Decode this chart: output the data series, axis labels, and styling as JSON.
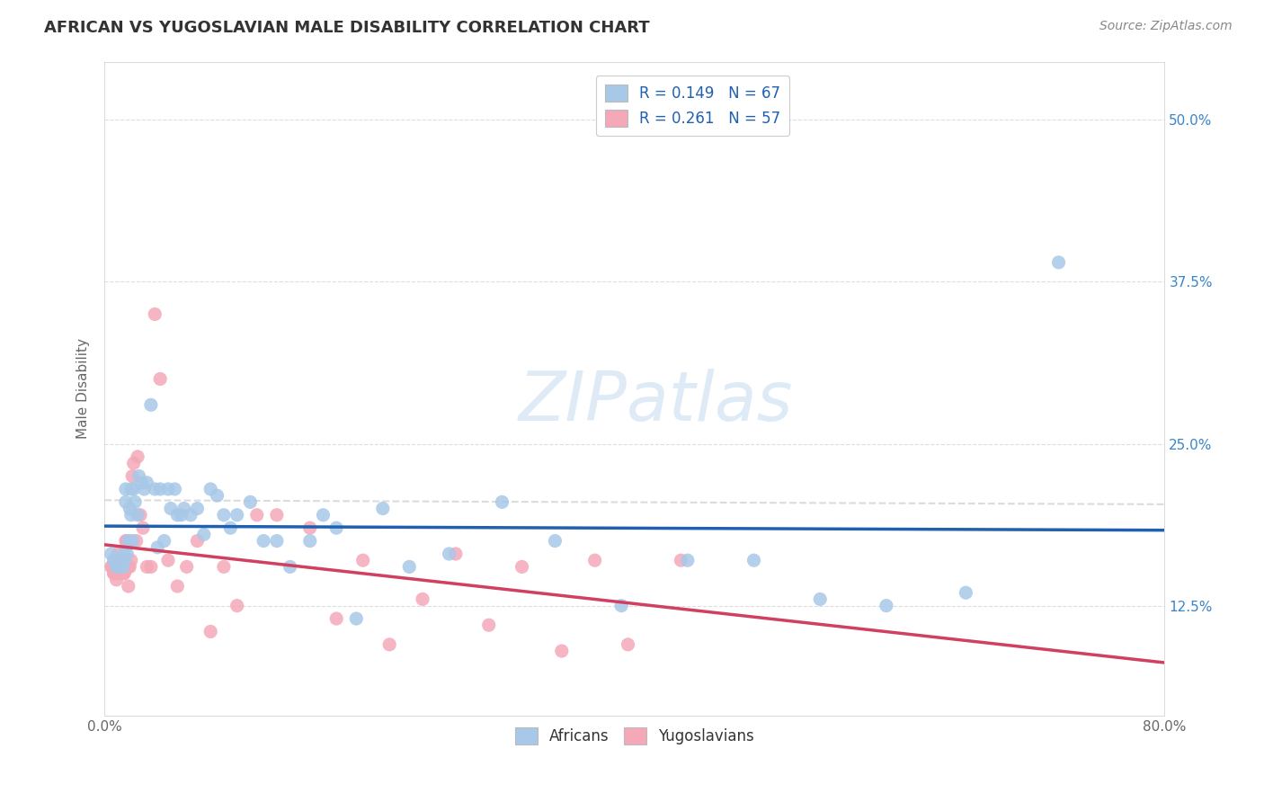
{
  "title": "AFRICAN VS YUGOSLAVIAN MALE DISABILITY CORRELATION CHART",
  "source": "Source: ZipAtlas.com",
  "ylabel": "Male Disability",
  "ytick_labels": [
    "12.5%",
    "25.0%",
    "37.5%",
    "50.0%"
  ],
  "ytick_values": [
    0.125,
    0.25,
    0.375,
    0.5
  ],
  "xlim": [
    0.0,
    0.8
  ],
  "ylim": [
    0.04,
    0.545
  ],
  "watermark": "ZIPatlas",
  "legend_african": "R = 0.149   N = 67",
  "legend_yugoslav": "R = 0.261   N = 57",
  "african_color": "#a8c8e8",
  "yugoslav_color": "#f4a8b8",
  "african_line_color": "#2060b0",
  "yugoslav_line_color": "#d04060",
  "background_color": "#ffffff",
  "african_points_x": [
    0.005,
    0.007,
    0.008,
    0.009,
    0.01,
    0.01,
    0.011,
    0.012,
    0.012,
    0.013,
    0.014,
    0.015,
    0.015,
    0.016,
    0.016,
    0.017,
    0.018,
    0.019,
    0.02,
    0.02,
    0.021,
    0.022,
    0.023,
    0.025,
    0.026,
    0.028,
    0.03,
    0.032,
    0.035,
    0.038,
    0.04,
    0.042,
    0.045,
    0.048,
    0.05,
    0.053,
    0.055,
    0.058,
    0.06,
    0.065,
    0.07,
    0.075,
    0.08,
    0.085,
    0.09,
    0.095,
    0.1,
    0.11,
    0.12,
    0.13,
    0.14,
    0.155,
    0.165,
    0.175,
    0.19,
    0.21,
    0.23,
    0.26,
    0.3,
    0.34,
    0.39,
    0.44,
    0.49,
    0.54,
    0.59,
    0.65,
    0.72
  ],
  "african_points_y": [
    0.165,
    0.16,
    0.16,
    0.155,
    0.16,
    0.155,
    0.155,
    0.16,
    0.155,
    0.16,
    0.155,
    0.16,
    0.165,
    0.205,
    0.215,
    0.165,
    0.175,
    0.2,
    0.195,
    0.215,
    0.175,
    0.215,
    0.205,
    0.195,
    0.225,
    0.22,
    0.215,
    0.22,
    0.28,
    0.215,
    0.17,
    0.215,
    0.175,
    0.215,
    0.2,
    0.215,
    0.195,
    0.195,
    0.2,
    0.195,
    0.2,
    0.18,
    0.215,
    0.21,
    0.195,
    0.185,
    0.195,
    0.205,
    0.175,
    0.175,
    0.155,
    0.175,
    0.195,
    0.185,
    0.115,
    0.2,
    0.155,
    0.165,
    0.205,
    0.175,
    0.125,
    0.16,
    0.16,
    0.13,
    0.125,
    0.135,
    0.39
  ],
  "yugoslav_points_x": [
    0.005,
    0.006,
    0.007,
    0.007,
    0.008,
    0.008,
    0.009,
    0.01,
    0.01,
    0.011,
    0.011,
    0.012,
    0.012,
    0.013,
    0.013,
    0.014,
    0.014,
    0.015,
    0.015,
    0.016,
    0.016,
    0.017,
    0.018,
    0.018,
    0.019,
    0.02,
    0.021,
    0.022,
    0.024,
    0.025,
    0.027,
    0.029,
    0.032,
    0.035,
    0.038,
    0.042,
    0.048,
    0.055,
    0.062,
    0.07,
    0.08,
    0.09,
    0.1,
    0.115,
    0.13,
    0.155,
    0.175,
    0.195,
    0.215,
    0.24,
    0.265,
    0.29,
    0.315,
    0.345,
    0.37,
    0.395,
    0.435
  ],
  "yugoslav_points_y": [
    0.155,
    0.155,
    0.15,
    0.15,
    0.155,
    0.155,
    0.145,
    0.165,
    0.155,
    0.15,
    0.15,
    0.155,
    0.155,
    0.16,
    0.15,
    0.15,
    0.15,
    0.155,
    0.15,
    0.155,
    0.175,
    0.175,
    0.155,
    0.14,
    0.155,
    0.16,
    0.225,
    0.235,
    0.175,
    0.24,
    0.195,
    0.185,
    0.155,
    0.155,
    0.35,
    0.3,
    0.16,
    0.14,
    0.155,
    0.175,
    0.105,
    0.155,
    0.125,
    0.195,
    0.195,
    0.185,
    0.115,
    0.16,
    0.095,
    0.13,
    0.165,
    0.11,
    0.155,
    0.09,
    0.16,
    0.095,
    0.16
  ]
}
